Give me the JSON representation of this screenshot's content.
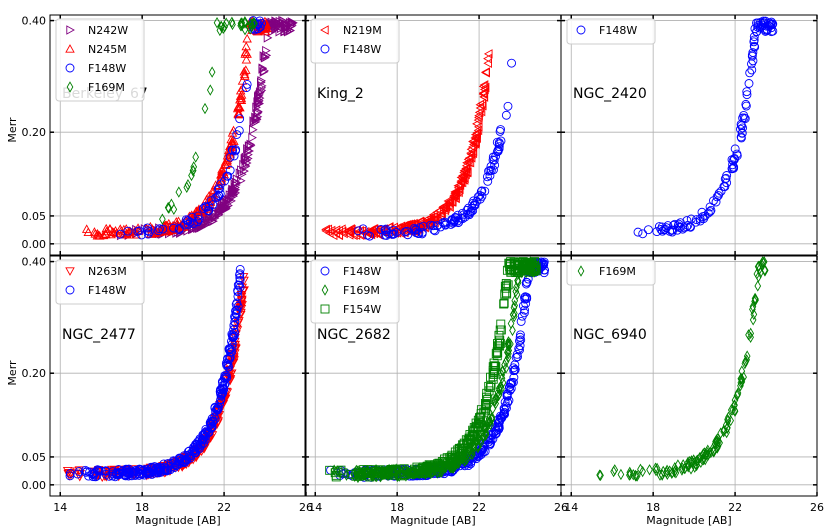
{
  "figure": {
    "xlabel": "Magnitude [AB]",
    "ylabel": "Merr",
    "xticks": [
      14,
      18,
      22,
      26
    ],
    "yticks": [
      0.0,
      0.05,
      0.2,
      0.4
    ],
    "ytick_labels": [
      "0.00",
      "0.05",
      "0.20",
      "0.40"
    ],
    "xlim": [
      13.5,
      26
    ],
    "ylim": [
      -0.02,
      0.41
    ]
  },
  "series_styles": {
    "N242W": {
      "marker": "triangle-right",
      "color": "#800080"
    },
    "N245M": {
      "marker": "triangle-up",
      "color": "#ff0000"
    },
    "F148W": {
      "marker": "circle",
      "color": "#0000ff"
    },
    "F169M": {
      "marker": "diamond",
      "color": "#008000"
    },
    "N219M": {
      "marker": "triangle-left",
      "color": "#ff0000"
    },
    "N263M": {
      "marker": "triangle-down",
      "color": "#ff0000"
    },
    "F154W": {
      "marker": "square",
      "color": "#008000"
    }
  },
  "chart_data": [
    {
      "type": "scatter",
      "panel": "Berkeley_67",
      "title": "Berkeley_67",
      "legend": [
        "N242W",
        "N245M",
        "F148W",
        "F169M"
      ],
      "series": [
        {
          "name": "N242W",
          "mag_range": [
            16.5,
            25.4
          ],
          "n": 260,
          "offset": 1.6
        },
        {
          "name": "N245M",
          "mag_range": [
            15.0,
            24.2
          ],
          "n": 220,
          "offset": 0.7
        },
        {
          "name": "F148W",
          "mag_range": [
            16.4,
            24.0
          ],
          "n": 70,
          "offset": 0.9
        },
        {
          "name": "F169M",
          "mag_range": [
            18.5,
            23.5
          ],
          "n": 40,
          "offset": -0.9
        }
      ]
    },
    {
      "type": "scatter",
      "panel": "King_2",
      "title": "King_2",
      "legend": [
        "N219M",
        "F148W"
      ],
      "series": [
        {
          "name": "N219M",
          "mag_range": [
            14.3,
            22.5
          ],
          "n": 260,
          "offset": 0.1
        },
        {
          "name": "F148W",
          "mag_range": [
            15.2,
            23.6
          ],
          "n": 110,
          "offset": 1.3
        }
      ]
    },
    {
      "type": "scatter",
      "panel": "NGC_2420",
      "title": "NGC_2420",
      "legend": [
        "F148W"
      ],
      "series": [
        {
          "name": "F148W",
          "mag_range": [
            17.2,
            23.9
          ],
          "n": 130,
          "offset": 0.5
        }
      ]
    },
    {
      "type": "scatter",
      "panel": "NGC_2477",
      "title": "NGC_2477",
      "legend": [
        "N263M",
        "F148W"
      ],
      "series": [
        {
          "name": "N263M",
          "mag_range": [
            14.0,
            23.0
          ],
          "n": 320,
          "offset": 0.5
        },
        {
          "name": "F148W",
          "mag_range": [
            14.0,
            22.8
          ],
          "n": 300,
          "offset": 0.3
        }
      ]
    },
    {
      "type": "scatter",
      "panel": "NGC_2682",
      "title": "NGC_2682",
      "legend": [
        "F148W",
        "F169M",
        "F154W"
      ],
      "series": [
        {
          "name": "F148W",
          "mag_range": [
            14.5,
            25.2
          ],
          "n": 340,
          "offset": 1.9
        },
        {
          "name": "F169M",
          "mag_range": [
            14.5,
            24.8
          ],
          "n": 260,
          "offset": 1.4
        },
        {
          "name": "F154W",
          "mag_range": [
            14.5,
            24.8
          ],
          "n": 300,
          "offset": 0.9
        }
      ]
    },
    {
      "type": "scatter",
      "panel": "NGC_6940",
      "title": "NGC_6940",
      "legend": [
        "F169M"
      ],
      "series": [
        {
          "name": "F169M",
          "mag_range": [
            15.0,
            23.5
          ],
          "n": 150,
          "offset": 0.6
        }
      ]
    }
  ]
}
